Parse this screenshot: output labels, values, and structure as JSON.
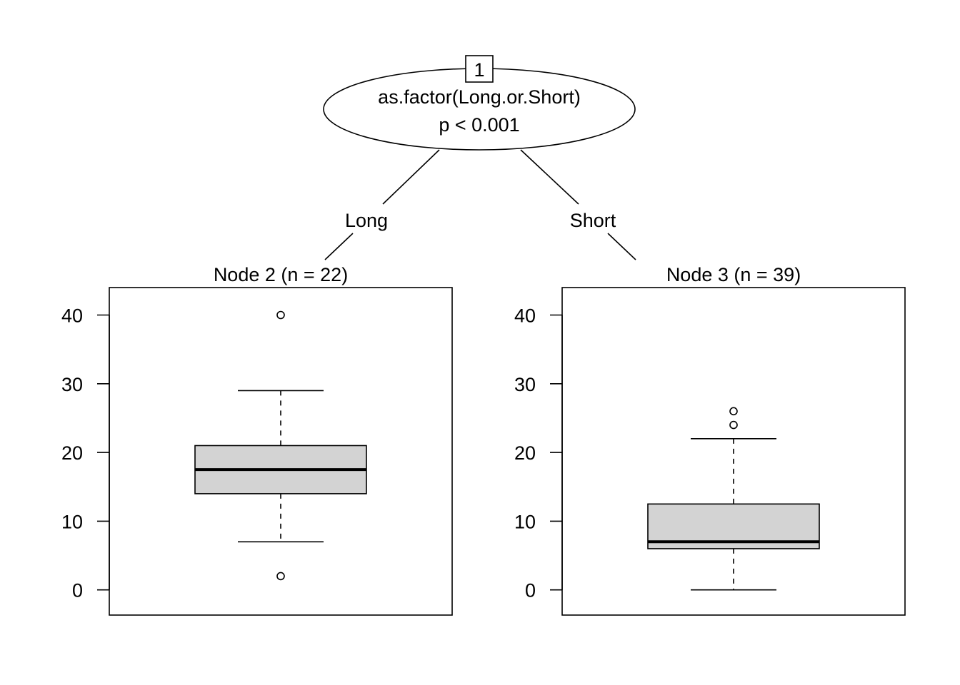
{
  "tree": {
    "root": {
      "id": "1",
      "variable": "as.factor(Long.or.Short)",
      "pvalue": "p < 0.001"
    },
    "edges": [
      {
        "label": "Long"
      },
      {
        "label": "Short"
      }
    ]
  },
  "chart_data": [
    {
      "type": "boxplot",
      "title": "Node 2 (n = 22)",
      "ylim": [
        -4,
        43
      ],
      "yticks": [
        0,
        10,
        20,
        30,
        40
      ],
      "ytick_labels": [
        "0",
        "10",
        "20",
        "30",
        "40"
      ],
      "box": {
        "whisker_low": 7,
        "q1": 14,
        "median": 17.5,
        "q3": 21,
        "whisker_high": 29
      },
      "outliers": [
        40,
        2
      ],
      "box_fill": "#d3d3d3"
    },
    {
      "type": "boxplot",
      "title": "Node 3 (n = 39)",
      "ylim": [
        -4,
        43
      ],
      "yticks": [
        0,
        10,
        20,
        30,
        40
      ],
      "ytick_labels": [
        "0",
        "10",
        "20",
        "30",
        "40"
      ],
      "box": {
        "whisker_low": 0,
        "q1": 6,
        "median": 7,
        "q3": 12.5,
        "whisker_high": 22
      },
      "outliers": [
        26,
        24
      ],
      "box_fill": "#d3d3d3"
    }
  ]
}
